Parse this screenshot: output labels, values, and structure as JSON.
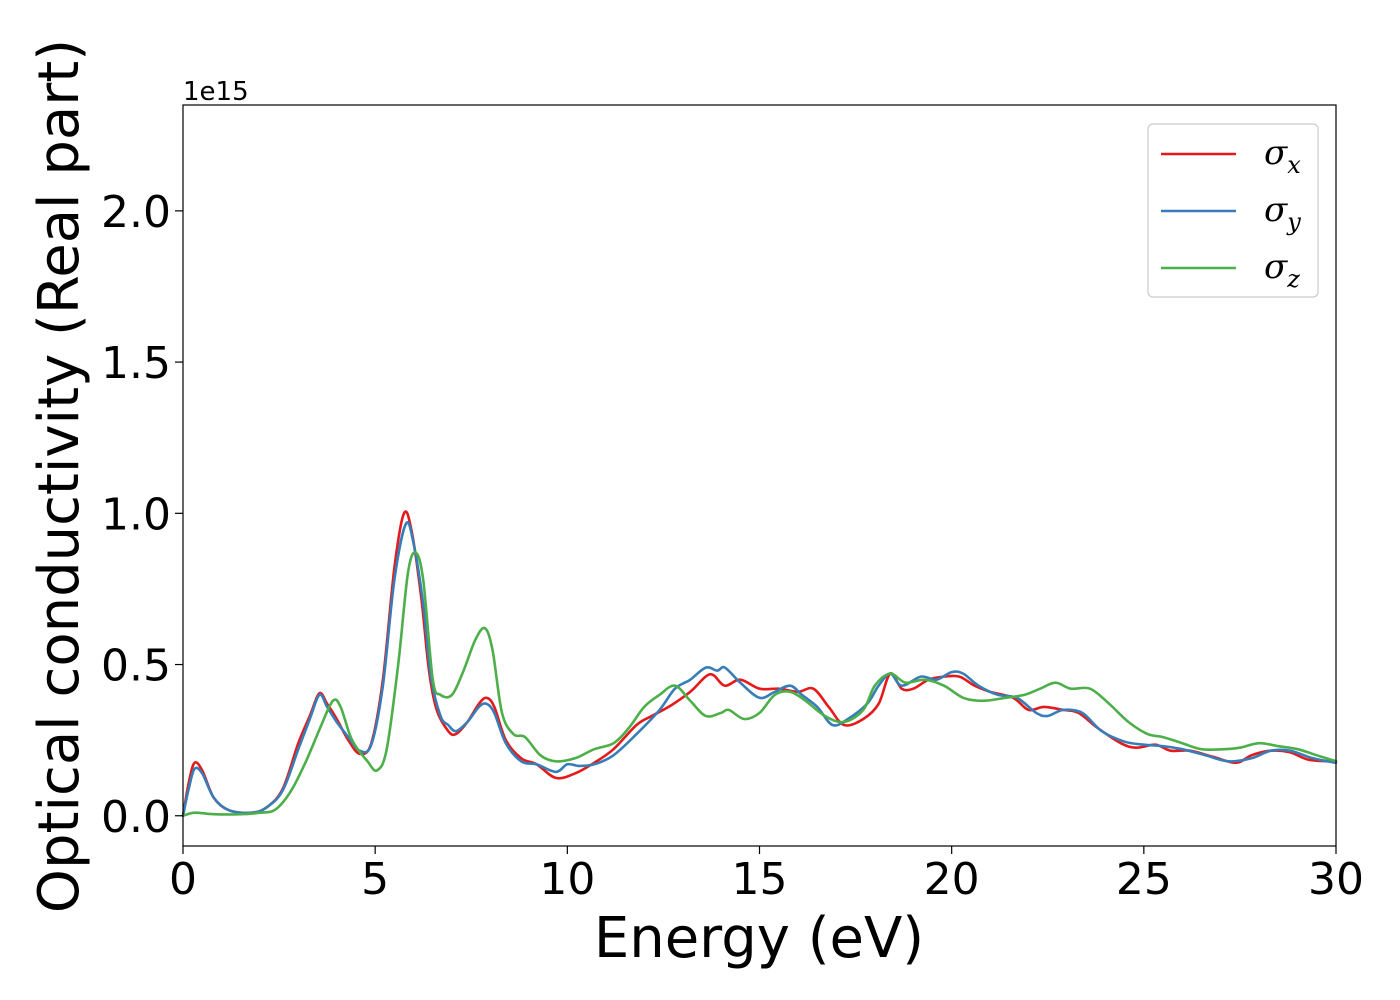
{
  "chart_data": {
    "type": "line",
    "xlabel": "Energy (eV)",
    "ylabel": "Optical conductivity (Real part)",
    "y_offset_text": "1e15",
    "xlim": [
      0,
      30
    ],
    "ylim": [
      -0.1,
      2.35
    ],
    "x_ticks": [
      0,
      5,
      10,
      15,
      20,
      25,
      30
    ],
    "x_tick_labels": [
      "0",
      "5",
      "10",
      "15",
      "20",
      "25",
      "30"
    ],
    "y_ticks": [
      0.0,
      0.5,
      1.0,
      1.5,
      2.0
    ],
    "y_tick_labels": [
      "0.0",
      "0.5",
      "1.0",
      "1.5",
      "2.0"
    ],
    "grid": false,
    "legend_position": "top-right",
    "series": [
      {
        "name": "σx",
        "symbol": "σ",
        "subscript": "x",
        "color": "#e41a1c",
        "points": [
          [
            0,
            0
          ],
          [
            0.15,
            0.11
          ],
          [
            0.3,
            0.175
          ],
          [
            0.5,
            0.15
          ],
          [
            0.8,
            0.06
          ],
          [
            1.2,
            0.018
          ],
          [
            1.8,
            0.01
          ],
          [
            2.2,
            0.03
          ],
          [
            2.6,
            0.09
          ],
          [
            3.0,
            0.24
          ],
          [
            3.3,
            0.33
          ],
          [
            3.55,
            0.405
          ],
          [
            3.75,
            0.37
          ],
          [
            4.0,
            0.32
          ],
          [
            4.3,
            0.25
          ],
          [
            4.6,
            0.205
          ],
          [
            4.9,
            0.24
          ],
          [
            5.2,
            0.45
          ],
          [
            5.5,
            0.82
          ],
          [
            5.75,
            1.0
          ],
          [
            5.95,
            0.94
          ],
          [
            6.2,
            0.72
          ],
          [
            6.4,
            0.48
          ],
          [
            6.6,
            0.35
          ],
          [
            6.9,
            0.28
          ],
          [
            7.1,
            0.27
          ],
          [
            7.4,
            0.31
          ],
          [
            7.7,
            0.37
          ],
          [
            7.9,
            0.39
          ],
          [
            8.1,
            0.36
          ],
          [
            8.4,
            0.25
          ],
          [
            8.8,
            0.19
          ],
          [
            9.2,
            0.17
          ],
          [
            9.7,
            0.125
          ],
          [
            10.2,
            0.14
          ],
          [
            10.7,
            0.175
          ],
          [
            11.2,
            0.22
          ],
          [
            11.8,
            0.3
          ],
          [
            12.2,
            0.33
          ],
          [
            12.7,
            0.365
          ],
          [
            13.2,
            0.41
          ],
          [
            13.6,
            0.46
          ],
          [
            13.8,
            0.465
          ],
          [
            14.1,
            0.43
          ],
          [
            14.5,
            0.45
          ],
          [
            15.0,
            0.42
          ],
          [
            15.5,
            0.42
          ],
          [
            16.0,
            0.41
          ],
          [
            16.4,
            0.42
          ],
          [
            16.8,
            0.36
          ],
          [
            17.2,
            0.3
          ],
          [
            17.7,
            0.32
          ],
          [
            18.1,
            0.37
          ],
          [
            18.4,
            0.47
          ],
          [
            18.7,
            0.42
          ],
          [
            19.0,
            0.42
          ],
          [
            19.4,
            0.45
          ],
          [
            19.8,
            0.46
          ],
          [
            20.2,
            0.46
          ],
          [
            20.6,
            0.43
          ],
          [
            21.0,
            0.41
          ],
          [
            21.6,
            0.39
          ],
          [
            22.0,
            0.35
          ],
          [
            22.4,
            0.36
          ],
          [
            22.9,
            0.35
          ],
          [
            23.3,
            0.34
          ],
          [
            23.8,
            0.29
          ],
          [
            24.4,
            0.24
          ],
          [
            24.8,
            0.225
          ],
          [
            25.3,
            0.235
          ],
          [
            25.7,
            0.215
          ],
          [
            26.2,
            0.215
          ],
          [
            26.8,
            0.195
          ],
          [
            27.4,
            0.175
          ],
          [
            27.8,
            0.2
          ],
          [
            28.3,
            0.215
          ],
          [
            28.8,
            0.21
          ],
          [
            29.3,
            0.185
          ],
          [
            30,
            0.18
          ]
        ]
      },
      {
        "name": "σy",
        "symbol": "σ",
        "subscript": "y",
        "color": "#377eb8",
        "points": [
          [
            0,
            0
          ],
          [
            0.15,
            0.09
          ],
          [
            0.3,
            0.155
          ],
          [
            0.5,
            0.14
          ],
          [
            0.8,
            0.06
          ],
          [
            1.2,
            0.018
          ],
          [
            1.8,
            0.01
          ],
          [
            2.2,
            0.03
          ],
          [
            2.6,
            0.085
          ],
          [
            3.0,
            0.22
          ],
          [
            3.3,
            0.32
          ],
          [
            3.55,
            0.4
          ],
          [
            3.75,
            0.36
          ],
          [
            4.0,
            0.31
          ],
          [
            4.3,
            0.26
          ],
          [
            4.6,
            0.215
          ],
          [
            4.9,
            0.235
          ],
          [
            5.2,
            0.43
          ],
          [
            5.5,
            0.78
          ],
          [
            5.8,
            0.965
          ],
          [
            6.0,
            0.9
          ],
          [
            6.25,
            0.7
          ],
          [
            6.45,
            0.46
          ],
          [
            6.7,
            0.33
          ],
          [
            6.9,
            0.3
          ],
          [
            7.1,
            0.28
          ],
          [
            7.4,
            0.31
          ],
          [
            7.7,
            0.36
          ],
          [
            7.9,
            0.37
          ],
          [
            8.1,
            0.34
          ],
          [
            8.4,
            0.24
          ],
          [
            8.8,
            0.18
          ],
          [
            9.2,
            0.17
          ],
          [
            9.7,
            0.145
          ],
          [
            10.0,
            0.17
          ],
          [
            10.3,
            0.165
          ],
          [
            10.7,
            0.17
          ],
          [
            11.2,
            0.2
          ],
          [
            11.8,
            0.27
          ],
          [
            12.4,
            0.35
          ],
          [
            12.8,
            0.42
          ],
          [
            13.2,
            0.45
          ],
          [
            13.6,
            0.49
          ],
          [
            13.9,
            0.48
          ],
          [
            14.1,
            0.49
          ],
          [
            14.5,
            0.44
          ],
          [
            15.0,
            0.39
          ],
          [
            15.4,
            0.41
          ],
          [
            15.8,
            0.43
          ],
          [
            16.1,
            0.4
          ],
          [
            16.5,
            0.36
          ],
          [
            16.9,
            0.3
          ],
          [
            17.3,
            0.32
          ],
          [
            17.8,
            0.37
          ],
          [
            18.1,
            0.43
          ],
          [
            18.4,
            0.47
          ],
          [
            18.7,
            0.43
          ],
          [
            19.2,
            0.46
          ],
          [
            19.6,
            0.45
          ],
          [
            20.0,
            0.475
          ],
          [
            20.3,
            0.47
          ],
          [
            20.7,
            0.43
          ],
          [
            21.2,
            0.4
          ],
          [
            21.7,
            0.39
          ],
          [
            22.2,
            0.34
          ],
          [
            22.5,
            0.33
          ],
          [
            22.9,
            0.35
          ],
          [
            23.4,
            0.34
          ],
          [
            23.9,
            0.28
          ],
          [
            24.5,
            0.245
          ],
          [
            25.0,
            0.235
          ],
          [
            25.5,
            0.23
          ],
          [
            26.0,
            0.22
          ],
          [
            26.6,
            0.2
          ],
          [
            27.2,
            0.18
          ],
          [
            27.8,
            0.19
          ],
          [
            28.3,
            0.215
          ],
          [
            28.8,
            0.215
          ],
          [
            29.4,
            0.19
          ],
          [
            30,
            0.175
          ]
        ]
      },
      {
        "name": "σz",
        "symbol": "σ",
        "subscript": "z",
        "color": "#4daf4a",
        "points": [
          [
            0,
            0
          ],
          [
            0.3,
            0.01
          ],
          [
            0.8,
            0.005
          ],
          [
            1.5,
            0.005
          ],
          [
            2.0,
            0.01
          ],
          [
            2.4,
            0.02
          ],
          [
            2.8,
            0.08
          ],
          [
            3.2,
            0.18
          ],
          [
            3.6,
            0.3
          ],
          [
            3.9,
            0.38
          ],
          [
            4.1,
            0.36
          ],
          [
            4.4,
            0.25
          ],
          [
            4.8,
            0.18
          ],
          [
            5.05,
            0.15
          ],
          [
            5.3,
            0.22
          ],
          [
            5.6,
            0.5
          ],
          [
            5.85,
            0.8
          ],
          [
            6.05,
            0.87
          ],
          [
            6.25,
            0.78
          ],
          [
            6.5,
            0.45
          ],
          [
            6.7,
            0.4
          ],
          [
            7.0,
            0.4
          ],
          [
            7.3,
            0.48
          ],
          [
            7.6,
            0.58
          ],
          [
            7.85,
            0.62
          ],
          [
            8.05,
            0.55
          ],
          [
            8.3,
            0.34
          ],
          [
            8.6,
            0.27
          ],
          [
            8.9,
            0.26
          ],
          [
            9.3,
            0.2
          ],
          [
            9.7,
            0.18
          ],
          [
            10.2,
            0.19
          ],
          [
            10.7,
            0.22
          ],
          [
            11.2,
            0.24
          ],
          [
            11.6,
            0.29
          ],
          [
            12.0,
            0.36
          ],
          [
            12.4,
            0.4
          ],
          [
            12.8,
            0.43
          ],
          [
            13.2,
            0.38
          ],
          [
            13.6,
            0.33
          ],
          [
            14.0,
            0.34
          ],
          [
            14.2,
            0.35
          ],
          [
            14.6,
            0.32
          ],
          [
            15.0,
            0.34
          ],
          [
            15.4,
            0.4
          ],
          [
            15.8,
            0.41
          ],
          [
            16.2,
            0.38
          ],
          [
            16.7,
            0.33
          ],
          [
            17.2,
            0.31
          ],
          [
            17.7,
            0.35
          ],
          [
            18.0,
            0.43
          ],
          [
            18.4,
            0.47
          ],
          [
            18.8,
            0.44
          ],
          [
            19.3,
            0.45
          ],
          [
            19.8,
            0.43
          ],
          [
            20.3,
            0.39
          ],
          [
            20.8,
            0.38
          ],
          [
            21.4,
            0.39
          ],
          [
            21.9,
            0.4
          ],
          [
            22.3,
            0.42
          ],
          [
            22.7,
            0.44
          ],
          [
            23.1,
            0.42
          ],
          [
            23.6,
            0.42
          ],
          [
            24.1,
            0.37
          ],
          [
            24.6,
            0.31
          ],
          [
            25.1,
            0.27
          ],
          [
            25.5,
            0.26
          ],
          [
            26.0,
            0.24
          ],
          [
            26.5,
            0.22
          ],
          [
            27.1,
            0.22
          ],
          [
            27.5,
            0.225
          ],
          [
            28.0,
            0.24
          ],
          [
            28.5,
            0.23
          ],
          [
            29.0,
            0.22
          ],
          [
            29.5,
            0.2
          ],
          [
            30,
            0.18
          ]
        ]
      }
    ]
  }
}
